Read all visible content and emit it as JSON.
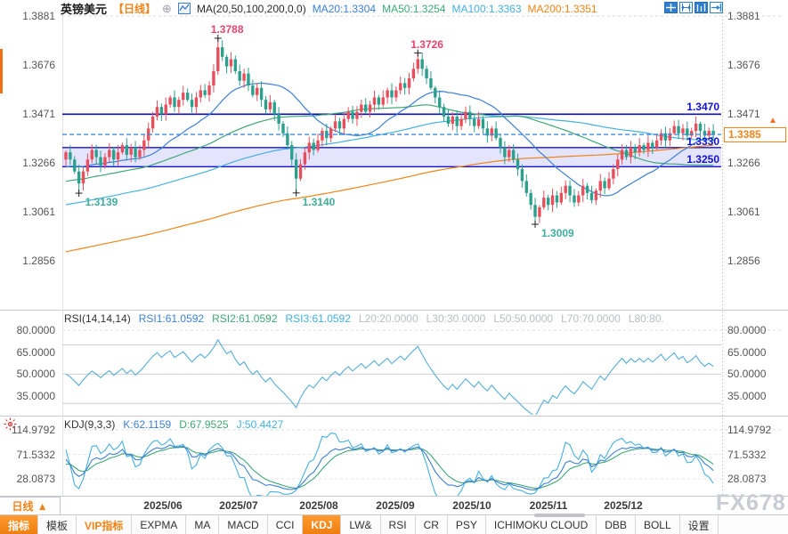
{
  "title_bar": {
    "symbol": "英镑美元",
    "period": "【日线】",
    "plus_icon": "⊕",
    "ma_settings": "MA(20,50,100,200,0,0)",
    "ma20": "MA20:1.3304",
    "ma50": "MA50:1.3254",
    "ma100": "MA100:1.3363",
    "ma200": "MA200:1.3351"
  },
  "top_right_icons": [
    "crosshair",
    "fit-width",
    "auto-scale",
    "go-to-latest"
  ],
  "colors": {
    "up": "#e84f5c",
    "down": "#2ba08c",
    "ma20": "#3d7fd6",
    "ma50": "#3fa876",
    "ma100": "#45b1e0",
    "ma200": "#f08418",
    "level_line": "#0d0dc0",
    "zone_border": "#1212cf",
    "zone_fill": "rgba(132,132,240,0.22)",
    "last_price_line": "#3d8be0",
    "rsi_line": "#56aed6",
    "kdj_k": "#3d7fd6",
    "kdj_d": "#3fa876",
    "kdj_j": "#45b1e0",
    "high_label": "#e8446e",
    "low_label": "#3fae9c",
    "accent_orange": "#f08418"
  },
  "rsi_panel": {
    "params": "RSI(14,14,14)",
    "values": [
      "RSI1:61.0592",
      "RSI2:61.0592",
      "RSI3:61.0592"
    ],
    "levels": [
      "L20:20.0000",
      "L30:30.0000",
      "L50:50.0000",
      "L70:70.0000",
      "L80:80."
    ]
  },
  "kdj_panel": {
    "params": "KDJ(9,3,3)",
    "k": "K:62.1159",
    "d": "D:67.9525",
    "j": "J:50.4427"
  },
  "x_axis": {
    "period_label": "日线",
    "period_arrow": "▲"
  },
  "watermark": "FX678",
  "bottom_toolbar": {
    "items": [
      {
        "label": "指标",
        "style": "active"
      },
      {
        "label": "模板",
        "style": "normal"
      },
      {
        "label": "VIP指标",
        "style": "vip"
      },
      {
        "label": "EXPMA",
        "style": "normal"
      },
      {
        "label": "MA",
        "style": "normal"
      },
      {
        "label": "MACD",
        "style": "normal"
      },
      {
        "label": "CCI",
        "style": "normal"
      },
      {
        "label": "KDJ",
        "style": "active"
      },
      {
        "label": "LW&",
        "style": "normal"
      },
      {
        "label": "RSI",
        "style": "normal"
      },
      {
        "label": "CR",
        "style": "normal"
      },
      {
        "label": "PSY",
        "style": "normal"
      },
      {
        "label": "ICHIMOKU CLOUD",
        "style": "normal"
      },
      {
        "label": "DBB",
        "style": "normal"
      },
      {
        "label": "BOLL",
        "style": "normal"
      },
      {
        "label": "设置",
        "style": "normal"
      }
    ]
  },
  "chart_data": [
    {
      "type": "candlestick",
      "title": "英镑美元 日线 (GBP/USD daily)",
      "x_labels": [
        "2025/06",
        "2025/07",
        "2025/08",
        "2025/09",
        "2025/10",
        "2025/11",
        "2025/12"
      ],
      "y_ticks": [
        "1.3881",
        "1.3676",
        "1.3471",
        "1.3266",
        "1.3061",
        "1.2856"
      ],
      "y_range_approx": [
        1.2662,
        1.3896
      ],
      "first_open": 1.328,
      "closes": [
        1.331,
        1.328,
        1.323,
        1.318,
        1.323,
        1.328,
        1.332,
        1.329,
        1.3255,
        1.329,
        1.332,
        1.328,
        1.331,
        1.334,
        1.33,
        1.333,
        1.329,
        1.332,
        1.336,
        1.341,
        1.346,
        1.35,
        1.347,
        1.351,
        1.354,
        1.35,
        1.353,
        1.356,
        1.353,
        1.35,
        1.354,
        1.357,
        1.355,
        1.359,
        1.365,
        1.375,
        1.371,
        1.367,
        1.37,
        1.365,
        1.361,
        1.364,
        1.359,
        1.355,
        1.358,
        1.353,
        1.349,
        1.352,
        1.347,
        1.343,
        1.339,
        1.334,
        1.328,
        1.32,
        1.326,
        1.331,
        1.335,
        1.332,
        1.336,
        1.34,
        1.337,
        1.341,
        1.344,
        1.341,
        1.345,
        1.348,
        1.345,
        1.348,
        1.351,
        1.348,
        1.351,
        1.354,
        1.351,
        1.354,
        1.357,
        1.354,
        1.357,
        1.36,
        1.358,
        1.362,
        1.366,
        1.37,
        1.366,
        1.362,
        1.358,
        1.354,
        1.35,
        1.346,
        1.343,
        1.346,
        1.342,
        1.345,
        1.348,
        1.345,
        1.342,
        1.345,
        1.341,
        1.338,
        1.341,
        1.337,
        1.333,
        1.329,
        1.332,
        1.328,
        1.324,
        1.319,
        1.314,
        1.309,
        1.304,
        1.308,
        1.312,
        1.309,
        1.313,
        1.31,
        1.314,
        1.317,
        1.313,
        1.31,
        1.313,
        1.317,
        1.314,
        1.311,
        1.315,
        1.319,
        1.316,
        1.32,
        1.324,
        1.328,
        1.332,
        1.329,
        1.333,
        1.331,
        1.334,
        1.332,
        1.335,
        1.333,
        1.336,
        1.339,
        1.336,
        1.339,
        1.342,
        1.339,
        1.341,
        1.338,
        1.34,
        1.343,
        1.34,
        1.338,
        1.34,
        1.3385
      ],
      "extremes": {
        "3": {
          "low": 1.3139
        },
        "35": {
          "high": 1.3788
        },
        "53": {
          "low": 1.314
        },
        "81": {
          "high": 1.3726
        },
        "108": {
          "low": 1.3009
        }
      },
      "annotations": [
        {
          "index": 35,
          "price": 1.3788,
          "text": "1.3788",
          "kind": "high"
        },
        {
          "index": 81,
          "price": 1.3726,
          "text": "1.3726",
          "kind": "high"
        },
        {
          "index": 3,
          "price": 1.3139,
          "text": "1.3139",
          "kind": "low"
        },
        {
          "index": 53,
          "price": 1.314,
          "text": "1.3140",
          "kind": "low"
        },
        {
          "index": 108,
          "price": 1.3009,
          "text": "1.3009",
          "kind": "low"
        }
      ],
      "levels": {
        "resistance": {
          "price": 1.347,
          "label": "1.3470"
        },
        "zone_top": {
          "price": 1.333,
          "label": "1.3330"
        },
        "zone_bottom": {
          "price": 1.325,
          "label": "1.3250"
        },
        "last_price": {
          "price": 1.3385,
          "label": "1.3385"
        }
      },
      "ma_current": {
        "MA20": 1.3304,
        "MA50": 1.3254,
        "MA100": 1.3363,
        "MA200": 1.3351
      }
    },
    {
      "type": "line",
      "name": "RSI(14,14,14)",
      "derived_from": "closes of chart_data[0]",
      "current": [
        61.0592,
        61.0592,
        61.0592
      ],
      "y_labels": [
        "80.0000",
        "65.0000",
        "50.0000",
        "35.0000"
      ],
      "level_lines": [
        80,
        70,
        50,
        30
      ]
    },
    {
      "type": "line",
      "name": "KDJ(9,3,3)",
      "derived_from": "ohlc of chart_data[0]",
      "current": {
        "k": 62.1159,
        "d": 67.9525,
        "j": 50.4427
      },
      "y_labels": [
        "114.9792",
        "71.5332",
        "28.0873"
      ]
    }
  ]
}
